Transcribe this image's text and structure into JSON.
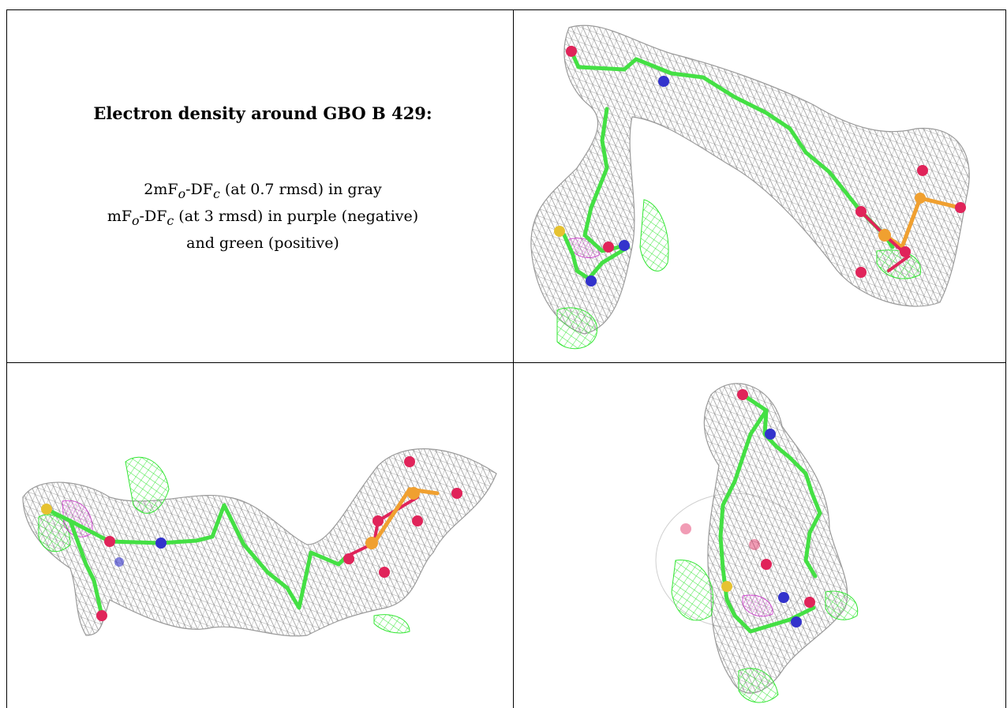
{
  "title": "Electron density around GBO B 429:",
  "caption": {
    "line1": {
      "pre": "2mF",
      "sub1": "o",
      "mid": "-DF",
      "sub2": "c",
      "post": " (at 0.7 rmsd) in gray"
    },
    "line2": {
      "pre": "mF",
      "sub1": "o",
      "mid": "-DF",
      "sub2": "c",
      "post": " (at 3 rmsd) in purple (negative)"
    },
    "line3": "and green (positive)"
  },
  "colors": {
    "mesh_gray": "#8a8a8a",
    "mesh_green": "#33e633",
    "mesh_purple": "#cc33cc",
    "carbon": "#44e044",
    "nitrogen": "#3333cc",
    "oxygen": "#e0245a",
    "sulfur": "#e6c230",
    "phosphorus": "#f0a030"
  },
  "panels": [
    {
      "name": "view-top-right",
      "icon": "ligand-density-view-1"
    },
    {
      "name": "view-bottom-left",
      "icon": "ligand-density-view-2"
    },
    {
      "name": "view-bottom-right",
      "icon": "ligand-density-view-3"
    }
  ]
}
